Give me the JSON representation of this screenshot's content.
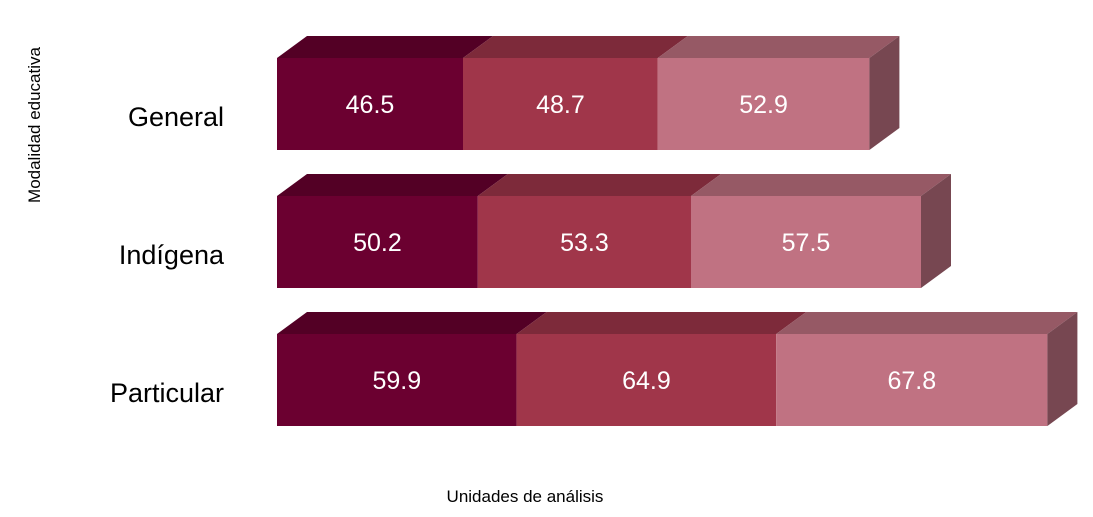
{
  "chart_data": {
    "type": "bar",
    "orientation": "horizontal",
    "stacked": true,
    "three_d": true,
    "title": "",
    "xlabel": "Unidades de análisis",
    "ylabel": "Modalidad educativa",
    "categories": [
      "General",
      "Indígena",
      "Particular"
    ],
    "series": [
      {
        "values": [
          46.5,
          50.2,
          59.9
        ],
        "color": "#6b0030"
      },
      {
        "values": [
          48.7,
          53.3,
          64.9
        ],
        "color": "#a0364a"
      },
      {
        "values": [
          52.9,
          57.5,
          67.8
        ],
        "color": "#c07282"
      }
    ],
    "grid": false,
    "legend": "none",
    "data_labels": true
  }
}
